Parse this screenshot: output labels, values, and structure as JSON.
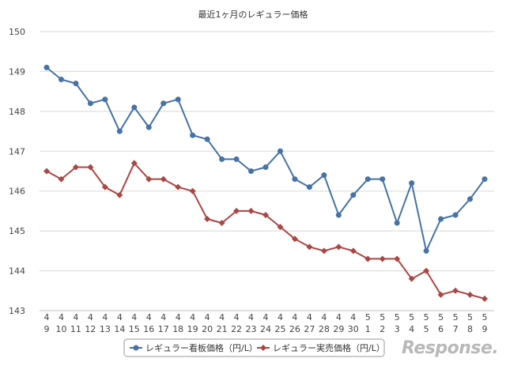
{
  "chart_data": {
    "type": "line",
    "title": "最近1ヶ月のレギュラー価格",
    "categories": [
      [
        "4",
        "9"
      ],
      [
        "4",
        "10"
      ],
      [
        "4",
        "11"
      ],
      [
        "4",
        "12"
      ],
      [
        "4",
        "13"
      ],
      [
        "4",
        "14"
      ],
      [
        "4",
        "15"
      ],
      [
        "4",
        "16"
      ],
      [
        "4",
        "17"
      ],
      [
        "4",
        "18"
      ],
      [
        "4",
        "19"
      ],
      [
        "4",
        "20"
      ],
      [
        "4",
        "21"
      ],
      [
        "4",
        "22"
      ],
      [
        "4",
        "23"
      ],
      [
        "4",
        "24"
      ],
      [
        "4",
        "25"
      ],
      [
        "4",
        "26"
      ],
      [
        "4",
        "27"
      ],
      [
        "4",
        "28"
      ],
      [
        "4",
        "29"
      ],
      [
        "4",
        "30"
      ],
      [
        "5",
        "1"
      ],
      [
        "5",
        "2"
      ],
      [
        "5",
        "3"
      ],
      [
        "5",
        "4"
      ],
      [
        "5",
        "5"
      ],
      [
        "5",
        "6"
      ],
      [
        "5",
        "7"
      ],
      [
        "5",
        "8"
      ],
      [
        "5",
        "9"
      ]
    ],
    "ylim": [
      143,
      150
    ],
    "yticks": [
      143,
      144,
      145,
      146,
      147,
      148,
      149,
      150
    ],
    "grid": true,
    "legend_position": "bottom",
    "series": [
      {
        "name": "レギュラー看板価格（円/L）",
        "color": "#4572a7",
        "marker": "circle",
        "values": [
          149.1,
          148.8,
          148.7,
          148.2,
          148.3,
          147.5,
          148.1,
          147.6,
          148.2,
          148.3,
          147.4,
          147.3,
          146.8,
          146.8,
          146.5,
          146.6,
          147.0,
          146.3,
          146.1,
          146.4,
          145.4,
          145.9,
          146.3,
          146.3,
          145.2,
          146.2,
          144.5,
          145.3,
          145.4,
          145.8,
          146.3
        ]
      },
      {
        "name": "レギュラー実売価格（円/L）",
        "color": "#aa4643",
        "marker": "diamond",
        "values": [
          146.5,
          146.3,
          146.6,
          146.6,
          146.1,
          145.9,
          146.7,
          146.3,
          146.3,
          146.1,
          146.0,
          145.3,
          145.2,
          145.5,
          145.5,
          145.4,
          145.1,
          144.8,
          144.6,
          144.5,
          144.6,
          144.5,
          144.3,
          144.3,
          144.3,
          143.8,
          144.0,
          143.4,
          143.5,
          143.4,
          143.3
        ]
      }
    ]
  },
  "watermark": "Response."
}
